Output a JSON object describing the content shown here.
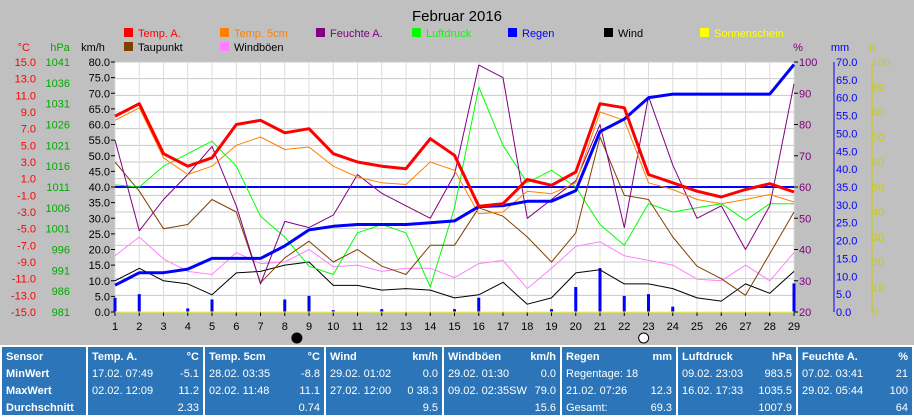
{
  "title": "Februar 2016",
  "axes": {
    "temp": {
      "unit": "°C",
      "ticks": [
        "15.0",
        "13.0",
        "11.0",
        "9.0",
        "7.0",
        "5.0",
        "3.0",
        "1.0",
        "-1.0",
        "-3.0",
        "-5.0",
        "-7.0",
        "-9.0",
        "-11.0",
        "-13.0",
        "-15.0"
      ],
      "color": "#ff0000"
    },
    "pressure": {
      "unit": "hPa",
      "ticks": [
        "1041",
        "1036",
        "1031",
        "1026",
        "1021",
        "1016",
        "1011",
        "1006",
        "1001",
        "996",
        "991",
        "986",
        "981"
      ],
      "color": "#00cc00"
    },
    "wind": {
      "unit": "km/h",
      "ticks": [
        "80.0",
        "75.0",
        "70.0",
        "65.0",
        "60.0",
        "55.0",
        "50.0",
        "45.0",
        "40.0",
        "35.0",
        "30.0",
        "25.0",
        "20.0",
        "15.0",
        "10.0",
        "5.0",
        "0.0"
      ],
      "color": "#000000"
    },
    "humidity": {
      "unit": "%",
      "ticks": [
        "100",
        "90",
        "80",
        "70",
        "60",
        "50",
        "40",
        "30",
        "20"
      ],
      "color": "#800080"
    },
    "rain": {
      "unit": "mm",
      "ticks": [
        "70.0",
        "65.0",
        "60.0",
        "55.0",
        "50.0",
        "45.0",
        "40.0",
        "35.0",
        "30.0",
        "25.0",
        "20.0",
        "15.0",
        "10.0",
        "5.0",
        "0.0"
      ],
      "color": "#0000ff"
    },
    "sun": {
      "unit": "h",
      "ticks": [
        "100",
        "90",
        "80",
        "70",
        "60",
        "50",
        "40",
        "30",
        "20",
        "10",
        "0"
      ],
      "color": "#ffff00"
    },
    "x_ticks": [
      "1",
      "2",
      "3",
      "4",
      "5",
      "6",
      "7",
      "8",
      "9",
      "10",
      "11",
      "12",
      "13",
      "14",
      "15",
      "16",
      "17",
      "18",
      "19",
      "20",
      "21",
      "22",
      "23",
      "24",
      "25",
      "26",
      "27",
      "28",
      "29"
    ]
  },
  "legend": [
    {
      "label": "Temp. A.",
      "color": "#ff0000",
      "text_color": "#ff0000"
    },
    {
      "label": "Temp. 5cm",
      "color": "#ff8000",
      "text_color": "#ff8000"
    },
    {
      "label": "Feuchte A.",
      "color": "#800080",
      "text_color": "#800080"
    },
    {
      "label": "Luftdruck",
      "color": "#00ff00",
      "text_color": "#00ff00"
    },
    {
      "label": "Regen",
      "color": "#0000ff",
      "text_color": "#0000ff"
    },
    {
      "label": "Wind",
      "color": "#000000",
      "text_color": "#000000"
    },
    {
      "label": "Sonnenschein",
      "color": "#ffff00",
      "text_color": "#ffff00"
    },
    {
      "label": "Taupunkt",
      "color": "#804000",
      "text_color": "#000000"
    },
    {
      "label": "Windböen",
      "color": "#ff80ff",
      "text_color": "#000000"
    }
  ],
  "chart_data": {
    "type": "line",
    "title": "Februar 2016",
    "x": [
      1,
      2,
      3,
      4,
      5,
      6,
      7,
      8,
      9,
      10,
      11,
      12,
      13,
      14,
      15,
      16,
      17,
      18,
      19,
      20,
      21,
      22,
      23,
      24,
      25,
      26,
      27,
      28,
      29
    ],
    "xlim": [
      1,
      29
    ],
    "grid": true,
    "series": [
      {
        "name": "Temp. A.",
        "axis": "temp",
        "color": "#ff0000",
        "width": 3,
        "values": [
          8.5,
          10.0,
          4.0,
          2.5,
          3.5,
          7.5,
          8.0,
          6.5,
          7.0,
          4.0,
          3.0,
          2.5,
          2.2,
          5.8,
          3.8,
          -2.3,
          -2.0,
          0.9,
          0.2,
          1.8,
          10.0,
          9.5,
          1.5,
          0.5,
          -0.5,
          -1.2,
          -0.3,
          0.4,
          -0.6
        ]
      },
      {
        "name": "Temp. 5cm",
        "axis": "temp",
        "color": "#ff8000",
        "width": 1,
        "values": [
          8.0,
          9.5,
          3.5,
          1.5,
          2.5,
          5.0,
          6.0,
          4.5,
          4.8,
          2.5,
          1.2,
          0.5,
          0.3,
          3.0,
          2.0,
          -3.2,
          -3.0,
          -0.5,
          -0.8,
          0.5,
          9.0,
          8.0,
          0.5,
          -0.3,
          -1.5,
          -2.0,
          -1.5,
          -0.9,
          -1.8
        ]
      },
      {
        "name": "Taupunkt",
        "axis": "temp",
        "color": "#804000",
        "width": 1,
        "values": [
          3.0,
          -0.5,
          -5.0,
          -4.5,
          -1.5,
          -3.0,
          -11.5,
          -8.5,
          -6.5,
          -9.0,
          -7.5,
          -9.5,
          -10.5,
          -7.0,
          -7.0,
          -2.5,
          -3.5,
          -6.0,
          -9.0,
          -5.5,
          6.0,
          -1.0,
          -1.5,
          -6.0,
          -9.5,
          -11.0,
          -13.0,
          -8.0,
          -3.0
        ]
      },
      {
        "name": "Feuchte A.",
        "axis": "humidity",
        "color": "#800080",
        "width": 1,
        "values": [
          75,
          46,
          56,
          64,
          73,
          54,
          29,
          49,
          47,
          51,
          64,
          58,
          54,
          50,
          64,
          99,
          95,
          50,
          56,
          62,
          80,
          47,
          89,
          67,
          50,
          54,
          40,
          54,
          93
        ]
      },
      {
        "name": "Luftdruck",
        "axis": "pressure",
        "color": "#00ff00",
        "width": 1,
        "values": [
          1011.5,
          1011,
          1016,
          1019,
          1022,
          1016,
          1004,
          999,
          992,
          990,
          1000,
          1002,
          1000,
          987,
          1006,
          1035,
          1021,
          1012,
          1015,
          1011,
          1002,
          997,
          1007,
          1005,
          1006,
          1007,
          1003,
          1007,
          1007
        ]
      },
      {
        "name": "Regen",
        "axis": "rain",
        "color": "#0000ff",
        "width": 3,
        "values": [
          7.5,
          11.0,
          11.0,
          12.0,
          15.0,
          15.0,
          15.0,
          18.5,
          23.0,
          24.0,
          24.5,
          24.5,
          24.5,
          25.0,
          25.5,
          29.5,
          29.8,
          31.0,
          31.0,
          34.0,
          50.5,
          54.0,
          60.0,
          61.0,
          61.0,
          61.0,
          61.0,
          61.0,
          69.3
        ]
      },
      {
        "name": "Wind",
        "axis": "wind",
        "color": "#000000",
        "width": 1,
        "values": [
          10.0,
          14.0,
          10.0,
          9.0,
          5.5,
          12.5,
          13.0,
          15.0,
          16.0,
          8.5,
          8.5,
          7.0,
          7.5,
          7.0,
          4.5,
          5.5,
          9.5,
          2.5,
          4.5,
          12.5,
          13.5,
          9.0,
          9.0,
          7.5,
          4.5,
          3.5,
          9.0,
          6.0,
          13.0
        ]
      },
      {
        "name": "Windböen",
        "axis": "wind",
        "color": "#ff80ff",
        "width": 1,
        "values": [
          18.0,
          24.0,
          17.0,
          13.0,
          12.0,
          19.0,
          15.5,
          16.0,
          20.0,
          14.5,
          15.0,
          13.0,
          14.0,
          14.0,
          11.0,
          15.5,
          16.5,
          7.5,
          14.0,
          21.0,
          22.5,
          18.0,
          16.5,
          15.0,
          10.5,
          10.0,
          15.0,
          10.0,
          19.0
        ]
      },
      {
        "name": "Sonnenschein",
        "axis": "sun",
        "color": "#ffff00",
        "width": 1,
        "values": [
          0,
          0,
          0,
          0,
          0,
          0,
          0,
          0,
          0,
          0,
          0,
          0,
          0,
          0,
          0,
          0,
          0,
          0,
          0,
          0,
          0,
          0,
          0,
          0,
          0,
          0,
          0,
          0,
          0
        ]
      }
    ],
    "reference_line": {
      "axis": "temp",
      "value": 0.0,
      "color": "#0000ff"
    },
    "rain_bars": {
      "axis": "rain",
      "color": "#0000ff",
      "x": [
        1,
        2,
        4,
        5,
        8,
        9,
        10,
        12,
        15,
        16,
        19,
        20,
        21,
        22,
        23,
        24,
        29
      ],
      "values": [
        4.0,
        5.0,
        1.0,
        3.5,
        3.5,
        4.5,
        0.5,
        0.8,
        0.8,
        4.0,
        0.8,
        7.0,
        12.3,
        4.5,
        5.0,
        1.5,
        8.0
      ]
    },
    "moon_phases": [
      {
        "x": 8.5,
        "phase": "new"
      },
      {
        "x": 22.8,
        "phase": "full"
      }
    ]
  },
  "table": {
    "row_labels": [
      "Sensor",
      "MinWert",
      "MaxWert",
      "Durchschnitt"
    ],
    "columns": [
      {
        "name": "Temp. A.",
        "unit": "°C",
        "min_date": "17.02.",
        "min_time": "07:49",
        "min": "-5.1",
        "max_date": "02.02.",
        "max_time": "12:09",
        "max": "11.2",
        "avg": "2.33"
      },
      {
        "name": "Temp. 5cm",
        "unit": "°C",
        "min_date": "28.02.",
        "min_time": "03:35",
        "min": "-8.8",
        "max_date": "02.02.",
        "max_time": "11:48",
        "max": "11.1",
        "avg": "0.74"
      },
      {
        "name": "Wind",
        "unit": "km/h",
        "min_date": "29.02.",
        "min_time": "01:02",
        "min": "0.0",
        "max_date": "27.02.",
        "max_time": "12:00",
        "max": "0 38.3",
        "avg": "9.5"
      },
      {
        "name": "Windböen",
        "unit": "km/h",
        "min_date": "29.02.",
        "min_time": "01:30",
        "min": "0.0",
        "max_date": "09.02.",
        "max_time": "02:35SW",
        "max": "79.0",
        "avg": "15.6"
      },
      {
        "name": "Regen",
        "unit": "mm",
        "min_date": "Regentage: 18",
        "min_time": "",
        "min": "",
        "max_date": "21.02.",
        "max_time": "07:26",
        "max": "12.3",
        "avg_label": "Gesamt:",
        "avg": "69.3"
      },
      {
        "name": "Luftdruck",
        "unit": "hPa",
        "min_date": "09.02.",
        "min_time": "23:03",
        "min": "983.5",
        "max_date": "16.02.",
        "max_time": "17:33",
        "max": "1035.5",
        "avg": "1007.9"
      },
      {
        "name": "Feuchte A.",
        "unit": "%",
        "min_date": "07.02.",
        "min_time": "03:41",
        "min": "21",
        "max_date": "29.02.",
        "max_time": "05:44",
        "max": "100",
        "avg": "64"
      }
    ]
  }
}
